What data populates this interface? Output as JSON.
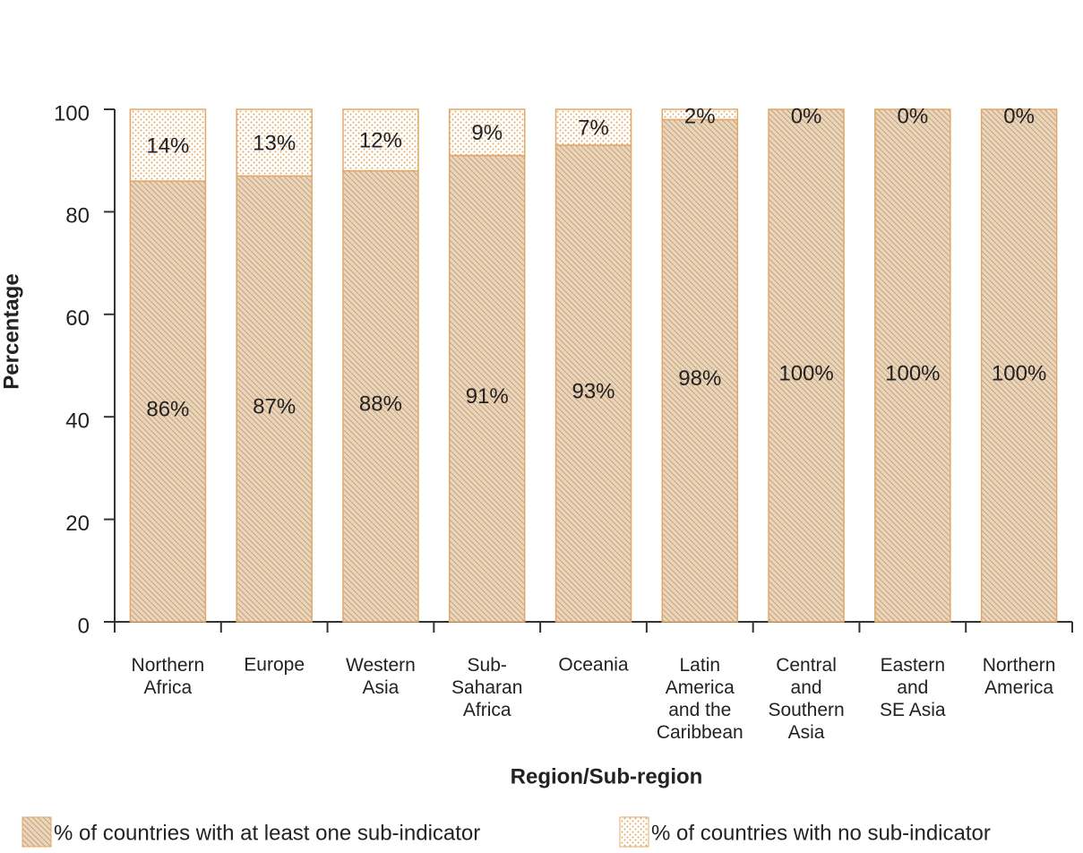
{
  "chart_data": {
    "type": "stacked-bar",
    "xlabel": "Region/Sub-region",
    "ylabel": "Percentage",
    "categories": [
      "Northern\nAfrica",
      "Europe",
      "Western\nAsia",
      "Sub-\nSaharan\nAfrica",
      "Oceania",
      "Latin\nAmerica\nand the\nCaribbean",
      "Central\nand\nSouthern\nAsia",
      "Eastern\nand\nSE Asia",
      "Northern\nAmerica"
    ],
    "series": [
      {
        "name": "% of countries with at least one sub-indicator",
        "color": "#e2a868",
        "values": [
          86,
          87,
          88,
          91,
          93,
          98,
          100,
          100,
          100
        ],
        "value_labels": [
          "86%",
          "87%",
          "88%",
          "91%",
          "93%",
          "98%",
          "100%",
          "100%",
          "100%"
        ]
      },
      {
        "name": "% of countries with no sub-indicator",
        "color": "#e2a868",
        "values": [
          14,
          13,
          12,
          9,
          7,
          2,
          0,
          0,
          0
        ],
        "value_labels": [
          "14%",
          "13%",
          "12%",
          "9%",
          "7%",
          "2%",
          "0%",
          "0%",
          "0%"
        ]
      }
    ],
    "ylim": [
      0,
      100
    ],
    "yticks": [
      0,
      20,
      40,
      60,
      80,
      100
    ]
  }
}
